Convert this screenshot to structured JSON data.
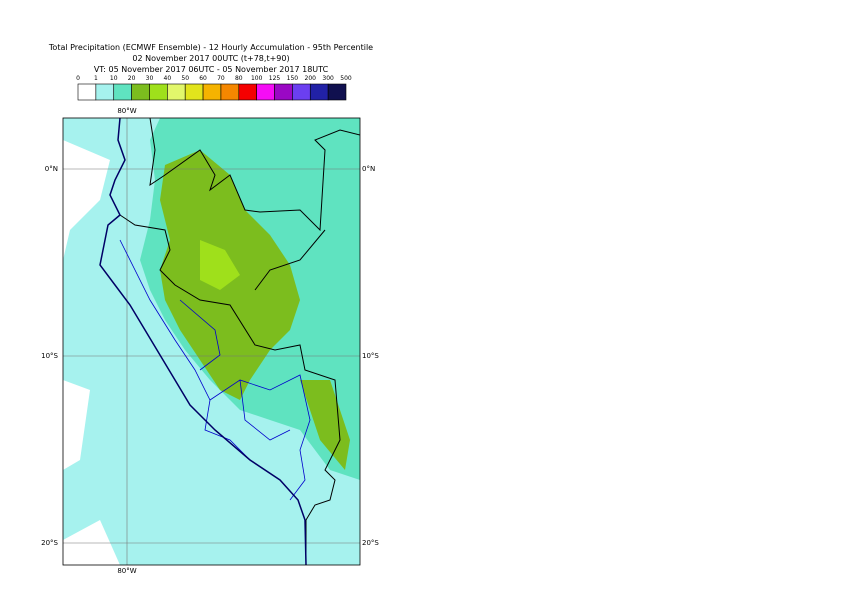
{
  "header": {
    "title": "Total Precipitation (ECMWF Ensemble) - 12 Hourly Accumulation - 95th Percentile",
    "base_time": "02 November 2017 00UTC (t+78,t+90)",
    "valid_time": "VT: 05 November 2017 06UTC - 05 November 2017 18UTC"
  },
  "legend": {
    "levels": [
      "0",
      "1",
      "10",
      "20",
      "30",
      "40",
      "50",
      "60",
      "70",
      "80",
      "100",
      "125",
      "150",
      "200",
      "300",
      "500"
    ],
    "colors": [
      "#ffffff",
      "#a6f2ee",
      "#5fe3c0",
      "#7cbd1e",
      "#9fe01b",
      "#e2f76b",
      "#e2e41c",
      "#f5b300",
      "#f58700",
      "#f50000",
      "#f50df5",
      "#9a08c4",
      "#6b3ff0",
      "#2121a6",
      "#10104f"
    ]
  },
  "map": {
    "lon_labels": [
      "80°W"
    ],
    "lat_labels": [
      "0°N",
      "10°S",
      "20°S"
    ]
  }
}
